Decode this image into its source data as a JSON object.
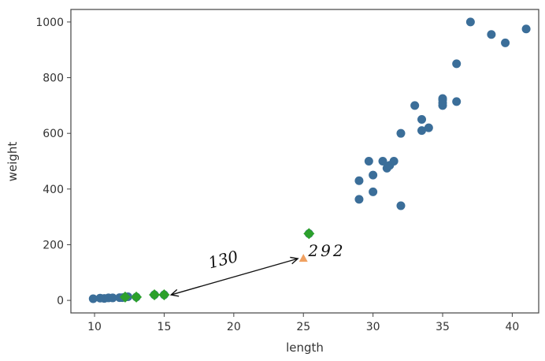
{
  "chart_data": {
    "type": "scatter",
    "xlabel": "length",
    "ylabel": "weight",
    "xlim": [
      8.3,
      41.9
    ],
    "ylim": [
      -45,
      1045
    ],
    "xticks": [
      10,
      15,
      20,
      25,
      30,
      35,
      40
    ],
    "yticks": [
      0,
      200,
      400,
      600,
      800,
      1000
    ],
    "grid": false,
    "colors": {
      "training": "#3b6e99",
      "query": "#f0a060",
      "neighbor": "#2ca02c"
    },
    "series": [
      {
        "marker": "circle",
        "color": "#3b6e99",
        "points": [
          [
            9.9,
            6
          ],
          [
            10.4,
            8
          ],
          [
            10.7,
            7
          ],
          [
            11.0,
            9
          ],
          [
            11.3,
            9
          ],
          [
            11.8,
            10
          ],
          [
            12.0,
            10
          ],
          [
            12.2,
            12
          ],
          [
            12.4,
            13
          ],
          [
            13.0,
            12
          ],
          [
            14.3,
            20
          ],
          [
            15.0,
            20
          ],
          [
            25.4,
            240
          ],
          [
            29.0,
            430
          ],
          [
            29.0,
            363
          ],
          [
            29.7,
            500
          ],
          [
            30.0,
            450
          ],
          [
            30.0,
            390
          ],
          [
            30.7,
            500
          ],
          [
            31.0,
            475
          ],
          [
            31.2,
            485
          ],
          [
            31.5,
            500
          ],
          [
            32.0,
            340
          ],
          [
            32.0,
            600
          ],
          [
            33.0,
            700
          ],
          [
            33.5,
            650
          ],
          [
            33.5,
            610
          ],
          [
            34.0,
            620
          ],
          [
            35.0,
            725
          ],
          [
            35.0,
            720
          ],
          [
            35.0,
            700
          ],
          [
            35.0,
            710
          ],
          [
            36.0,
            714
          ],
          [
            36.0,
            850
          ],
          [
            37.0,
            1000
          ],
          [
            38.5,
            955
          ],
          [
            39.5,
            925
          ],
          [
            41.0,
            975
          ]
        ]
      },
      {
        "marker": "triangle",
        "color": "#f0a060",
        "points": [
          [
            25,
            150
          ]
        ]
      },
      {
        "marker": "diamond",
        "color": "#2ca02c",
        "points": [
          [
            12.2,
            12
          ],
          [
            13.0,
            12
          ],
          [
            14.3,
            20
          ],
          [
            15.0,
            20
          ],
          [
            25.4,
            240
          ]
        ]
      }
    ],
    "annotations": [
      {
        "text": "130",
        "from": [
          15.5,
          20
        ],
        "to": [
          24.6,
          150
        ]
      },
      {
        "text": "292"
      }
    ]
  }
}
